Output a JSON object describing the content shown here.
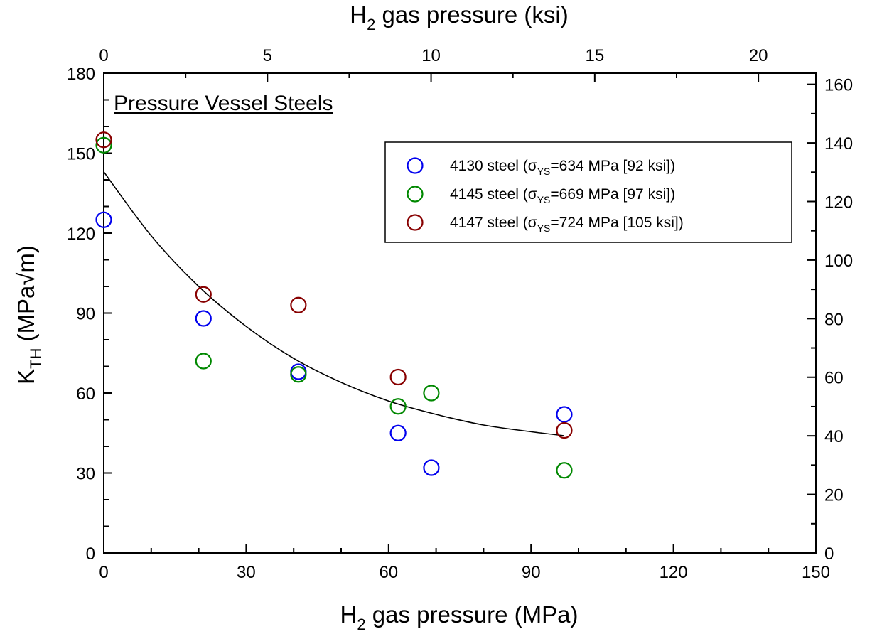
{
  "chart_data": {
    "type": "scatter",
    "title": "Pressure Vessel Steels",
    "xlabel": {
      "base": "H",
      "sub": "2",
      "rest": " gas pressure  (MPa)"
    },
    "x2label": {
      "base": "H",
      "sub": "2",
      "rest": " gas pressure  (ksi)"
    },
    "ylabel": {
      "base": "K",
      "sub": "TH",
      "rest": "  (MPa√m)"
    },
    "xlim": [
      0,
      150
    ],
    "x2lim": [
      0,
      21.756
    ],
    "ylim": [
      0,
      180
    ],
    "y2lim": [
      0,
      163.8
    ],
    "xticks": [
      0,
      30,
      60,
      90,
      120,
      150
    ],
    "x2ticks": [
      0,
      5,
      10,
      15,
      20
    ],
    "yticks": [
      0,
      30,
      60,
      90,
      120,
      150,
      180
    ],
    "y2ticks": [
      0,
      20,
      40,
      60,
      80,
      100,
      120,
      140,
      160
    ],
    "grid": false,
    "legend_position": "top-right",
    "series": [
      {
        "name": "4130 steel (σYS=634 MPa [92 ksi])",
        "label_parts": {
          "pre": "4130 steel (σ",
          "sub": "YS",
          "post": "=634 MPa [92 ksi])"
        },
        "color": "#0000ee",
        "points": [
          [
            0,
            125
          ],
          [
            21,
            88
          ],
          [
            41,
            68
          ],
          [
            62,
            45
          ],
          [
            69,
            32
          ],
          [
            97,
            52
          ]
        ]
      },
      {
        "name": "4145 steel (σYS=669 MPa [97 ksi])",
        "label_parts": {
          "pre": "4145 steel (σ",
          "sub": "YS",
          "post": "=669 MPa [97 ksi])"
        },
        "color": "#008800",
        "points": [
          [
            0,
            153
          ],
          [
            21,
            72
          ],
          [
            41,
            67
          ],
          [
            62,
            55
          ],
          [
            69,
            60
          ],
          [
            97,
            31
          ]
        ]
      },
      {
        "name": "4147 steel (σYS=724 MPa [105 ksi])",
        "label_parts": {
          "pre": "4147 steel (σ",
          "sub": "YS",
          "post": "=724 MPa [105 ksi])"
        },
        "color": "#880000",
        "points": [
          [
            0,
            155
          ],
          [
            21,
            97
          ],
          [
            41,
            93
          ],
          [
            62,
            66
          ],
          [
            97,
            46
          ]
        ]
      }
    ],
    "fit_curve": {
      "color": "#000000",
      "points": [
        [
          0,
          143
        ],
        [
          10,
          119
        ],
        [
          20,
          100
        ],
        [
          30,
          85
        ],
        [
          40,
          73
        ],
        [
          50,
          64
        ],
        [
          60,
          57
        ],
        [
          70,
          52
        ],
        [
          80,
          48
        ],
        [
          90,
          45.5
        ],
        [
          97,
          44
        ]
      ]
    }
  }
}
